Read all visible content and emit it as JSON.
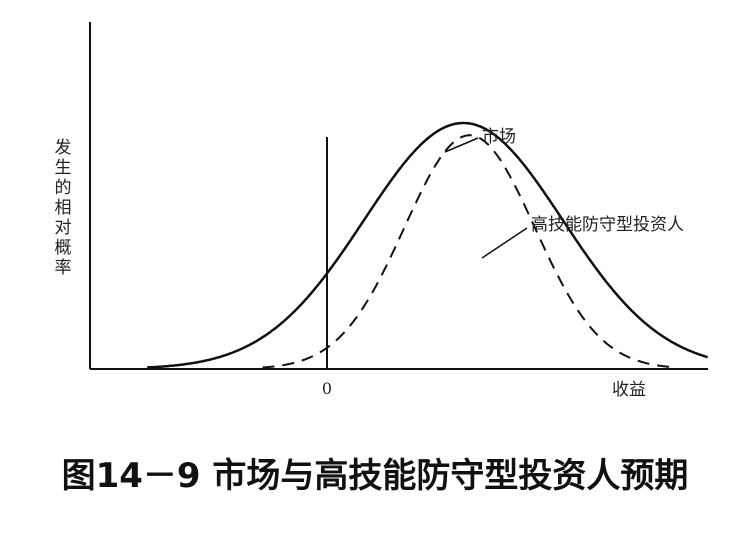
{
  "caption": "图14－9 市场与高技能防守型投资人预期",
  "chart_data": {
    "type": "line",
    "ylabel": "发生的相对概率",
    "xlabel": "收益",
    "x_ticks": [
      "0"
    ],
    "series": [
      {
        "name": "市场",
        "style": "solid",
        "mean": 2.2,
        "sd": 1.6,
        "peak": 1.0
      },
      {
        "name": "高技能防守型投资人",
        "style": "dashed",
        "mean": 2.3,
        "sd": 1.05,
        "peak": 0.95
      }
    ],
    "xlim": [
      -4,
      7.5
    ],
    "ylim": [
      0,
      1.05
    ],
    "grid": false,
    "colors": {
      "line": "#111111",
      "axis": "#111111"
    }
  }
}
